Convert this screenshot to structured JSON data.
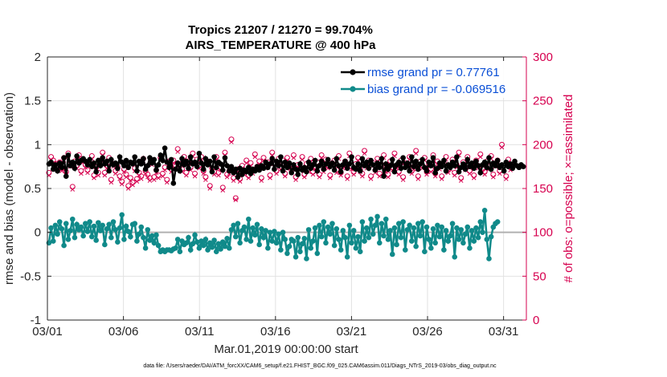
{
  "chart_data": {
    "type": "line",
    "title_line1": "Tropics 21207 / 21270 = 99.704%",
    "title_line2": "AIRS_TEMPERATURE @ 400 hPa",
    "xlabel": "Mar.01,2019 00:00:00 start",
    "ylabel": "rmse and bias (model - observation)",
    "ylabel_right": "# of obs: o=possible; ×=assimilated",
    "footer": "data file: /Users/raeder/DAI/ATM_forcXX/CAM6_setup/f.e21.FHIST_BGC.f09_025.CAM6assim.011/Diags_NTrS_2019-03/obs_diag_output.nc",
    "xlim": [
      0,
      31.5
    ],
    "ylim": [
      -1,
      2
    ],
    "ylim_right": [
      0,
      300
    ],
    "x_ticks": [
      0,
      5,
      10,
      15,
      20,
      25,
      30
    ],
    "x_tick_labels": [
      "03/01",
      "03/06",
      "03/11",
      "03/16",
      "03/21",
      "03/26",
      "03/31"
    ],
    "y_ticks": [
      -1,
      -0.5,
      0,
      0.5,
      1,
      1.5,
      2
    ],
    "y_tick_labels": [
      "-1",
      "-0.5",
      "0",
      "0.5",
      "1",
      "1.5",
      "2"
    ],
    "y_ticks_right": [
      0,
      50,
      100,
      150,
      200,
      250,
      300
    ],
    "y_tick_labels_right": [
      "0",
      "50",
      "100",
      "150",
      "200",
      "250",
      "300"
    ],
    "grid": true,
    "legend_position": "top-right",
    "colors": {
      "rmse": "#000000",
      "bias": "#108a8a",
      "obs": "#d6004f",
      "zero_line": "#b0b0b0",
      "axis_right": "#d6004f"
    },
    "series": [
      {
        "name": "rmse grand pr = 0.77761",
        "key": "rmse",
        "values": [
          0.78,
          0.8,
          0.72,
          0.77,
          0.7,
          0.79,
          0.74,
          0.85,
          0.64,
          0.88,
          0.76,
          0.8,
          0.73,
          0.87,
          0.79,
          0.82,
          0.84,
          0.81,
          0.77,
          0.83,
          0.75,
          0.79,
          0.69,
          0.82,
          0.76,
          0.85,
          0.78,
          0.81,
          0.7,
          0.83,
          0.77,
          0.79,
          0.73,
          0.86,
          0.8,
          0.76,
          0.82,
          0.74,
          0.8,
          0.78,
          0.86,
          0.7,
          0.81,
          0.78,
          0.84,
          0.72,
          0.76,
          0.85,
          0.79,
          0.83,
          0.71,
          0.77,
          0.88,
          0.82,
          0.96,
          0.8,
          0.74,
          0.83,
          0.56,
          0.72,
          0.79,
          0.7,
          0.84,
          0.77,
          0.81,
          0.73,
          0.86,
          0.78,
          0.8,
          0.75,
          0.9,
          0.79,
          0.72,
          0.84,
          0.77,
          0.81,
          0.69,
          0.86,
          0.74,
          0.8,
          0.78,
          0.71,
          0.85,
          0.76,
          0.7,
          0.75,
          0.68,
          0.72,
          0.63,
          0.73,
          0.66,
          0.71,
          0.69,
          0.74,
          0.67,
          0.72,
          0.7,
          0.75,
          0.71,
          0.76,
          0.73,
          0.8,
          0.74,
          0.78,
          0.84,
          0.72,
          0.81,
          0.76,
          0.86,
          0.7,
          0.8,
          0.74,
          0.79,
          0.68,
          0.77,
          0.72,
          0.66,
          0.78,
          0.71,
          0.74,
          0.69,
          0.8,
          0.73,
          0.77,
          0.82,
          0.7,
          0.76,
          0.81,
          0.72,
          0.78,
          0.83,
          0.75,
          0.79,
          0.71,
          0.84,
          0.76,
          0.69,
          0.77,
          0.81,
          0.73,
          0.78,
          0.86,
          0.74,
          0.72,
          0.78,
          0.7,
          0.84,
          0.76,
          0.8,
          0.73,
          0.82,
          0.77,
          0.71,
          0.79,
          0.74,
          0.84,
          0.64,
          0.78,
          0.72,
          0.76,
          0.83,
          0.69,
          0.77,
          0.8,
          0.73,
          0.85,
          0.74,
          0.79,
          0.7,
          0.86,
          0.75,
          0.81,
          0.72,
          0.78,
          0.83,
          0.74,
          0.7,
          0.8,
          0.76,
          0.85,
          0.68,
          0.73,
          0.79,
          0.75,
          0.82,
          0.7,
          0.77,
          0.74,
          0.8,
          0.76,
          0.86,
          0.69,
          0.74,
          0.78,
          0.72,
          0.83,
          0.75,
          0.79,
          0.73,
          0.81,
          0.76,
          0.68,
          0.77,
          0.8,
          0.74,
          0.85,
          0.72,
          0.79,
          0.76,
          0.82,
          0.74,
          0.77,
          0.7,
          0.8,
          0.75,
          0.78,
          0.73,
          0.81,
          0.76,
          0.74,
          0.77,
          0.75
        ]
      },
      {
        "name": "bias grand pr = -0.069516",
        "key": "bias",
        "values": [
          -0.12,
          0.05,
          -0.1,
          0.08,
          -0.02,
          0.12,
          0.04,
          -0.15,
          0.1,
          -0.08,
          0.02,
          0.15,
          -0.06,
          0.09,
          0.03,
          0.06,
          -0.04,
          0.1,
          0.01,
          0.12,
          -0.05,
          0.07,
          -0.09,
          0.11,
          0.02,
          0.08,
          -0.14,
          0.04,
          0.09,
          -0.06,
          0.12,
          0.03,
          -0.11,
          0.05,
          0.2,
          -0.08,
          0.07,
          0.01,
          -0.05,
          0.09,
          0.1,
          -0.1,
          -0.02,
          0.06,
          -0.06,
          -0.18,
          0.03,
          -0.09,
          -0.04,
          -0.12,
          -0.03,
          -0.15,
          -0.22,
          -0.2,
          -0.22,
          -0.2,
          -0.2,
          -0.21,
          -0.19,
          -0.18,
          -0.08,
          -0.22,
          -0.1,
          -0.14,
          -0.12,
          -0.06,
          -0.2,
          -0.13,
          -0.03,
          -0.11,
          -0.18,
          -0.1,
          -0.15,
          -0.08,
          -0.2,
          -0.12,
          -0.17,
          -0.09,
          -0.22,
          -0.13,
          -0.19,
          -0.11,
          -0.16,
          -0.07,
          -0.18,
          0.03,
          0.08,
          -0.05,
          0.1,
          -0.12,
          0.02,
          0.06,
          -0.08,
          0.15,
          -0.1,
          0.05,
          -0.03,
          0.09,
          -0.14,
          0.04,
          -0.06,
          0.02,
          -0.18,
          0.0,
          -0.1,
          0.01,
          -0.12,
          -0.02,
          -0.2,
          0.0,
          -0.08,
          -0.24,
          -0.16,
          -0.08,
          -0.1,
          -0.28,
          -0.06,
          -0.22,
          -0.13,
          -0.07,
          -0.3,
          0.03,
          -0.18,
          -0.1,
          0.05,
          -0.24,
          0.08,
          -0.05,
          0.12,
          -0.12,
          0.06,
          -0.02,
          0.1,
          -0.15,
          0.04,
          -0.08,
          -0.2,
          0.02,
          -0.06,
          -0.28,
          0.08,
          -0.12,
          0.02,
          -0.18,
          -0.05,
          -0.22,
          0.12,
          -0.1,
          0.05,
          -0.06,
          0.15,
          -0.02,
          0.08,
          0.18,
          -0.12,
          0.1,
          -0.04,
          0.15,
          -0.08,
          0.02,
          -0.25,
          0.05,
          -0.14,
          0.1,
          -0.06,
          0.12,
          -0.2,
          0.03,
          0.08,
          -0.1,
          0.05,
          -0.16,
          0.1,
          -0.04,
          0.12,
          -0.22,
          0.06,
          -0.08,
          -0.18,
          0.04,
          -0.12,
          0.08,
          -0.05,
          0.06,
          -0.2,
          0.02,
          -0.1,
          -0.04,
          0.1,
          -0.28,
          0.05,
          -0.08,
          0.03,
          -0.12,
          -0.02,
          0.06,
          -0.18,
          0.02,
          -0.1,
          0.05,
          -0.06,
          0.12,
          0.0,
          0.25,
          -0.08,
          -0.3,
          -0.05,
          0.06,
          0.1,
          0.12
        ]
      },
      {
        "name": "obs possible",
        "key": "obs",
        "values": [
          168,
          186,
          182,
          178,
          175,
          180,
          173,
          185,
          169,
          190,
          178,
          152,
          181,
          176,
          188,
          170,
          183,
          177,
          171,
          179,
          187,
          165,
          174,
          168,
          182,
          191,
          168,
          176,
          185,
          160,
          178,
          170,
          175,
          164,
          158,
          172,
          166,
          153,
          162,
          157,
          173,
          161,
          168,
          164,
          184,
          170,
          166,
          162,
          180,
          163,
          171,
          165,
          185,
          167,
          174,
          160,
          181,
          172,
          182,
          176,
          195,
          178,
          172,
          186,
          168,
          181,
          174,
          190,
          167,
          183,
          176,
          186,
          170,
          163,
          181,
          153,
          173,
          169,
          186,
          168,
          174,
          151,
          191,
          166,
          170,
          206,
          162,
          139,
          172,
          161,
          176,
          169,
          182,
          165,
          179,
          170,
          189,
          175,
          181,
          162,
          185,
          176,
          180,
          165,
          191,
          178,
          170,
          184,
          175,
          182,
          167,
          185,
          176,
          171,
          188,
          163,
          177,
          174,
          186,
          166,
          178,
          172,
          184,
          169,
          175,
          180,
          166,
          188,
          172,
          183,
          176,
          165,
          179,
          182,
          171,
          187,
          168,
          176,
          181,
          164,
          190,
          175,
          169,
          178,
          185,
          172,
          167,
          193,
          176,
          182,
          164,
          179,
          171,
          184,
          167,
          177,
          188,
          172,
          166,
          181,
          174,
          190,
          176,
          169,
          182,
          163,
          179,
          178,
          186,
          170,
          175,
          193,
          164,
          181,
          176,
          185,
          169,
          178,
          172,
          188,
          167,
          181,
          175,
          164,
          179,
          186,
          171,
          175,
          183,
          168,
          177,
          191,
          162,
          180,
          174,
          186,
          170,
          178,
          165,
          182,
          176,
          189,
          172,
          169,
          181,
          175,
          187,
          166,
          178,
          182,
          170,
          200,
          176,
          164,
          183,
          174
        ]
      }
    ],
    "assimilated": [
      165,
      183,
      179,
      175,
      172,
      177,
      170,
      182,
      166,
      187,
      175,
      149,
      178,
      173,
      185,
      167,
      180,
      174,
      168,
      176,
      184,
      162,
      171,
      165,
      179,
      188,
      165,
      173,
      182,
      157,
      175,
      167,
      172,
      161,
      155,
      169,
      163,
      150,
      159,
      154,
      170,
      158,
      165,
      161,
      181,
      167,
      163,
      159,
      177,
      160,
      168,
      162,
      182,
      164,
      171,
      157,
      178,
      169,
      179,
      173,
      192,
      175,
      169,
      183,
      165,
      178,
      171,
      187,
      164,
      180,
      173,
      183,
      167,
      160,
      178,
      150,
      170,
      166,
      183,
      165,
      171,
      148,
      188,
      163,
      167,
      203,
      159,
      137,
      169,
      158,
      173,
      166,
      179,
      162,
      176,
      167,
      186,
      172,
      178,
      159,
      182,
      173,
      177,
      162,
      188,
      175,
      167,
      181,
      172,
      179,
      164,
      182,
      173,
      168,
      185,
      160,
      174,
      171,
      183,
      163,
      175,
      169,
      181,
      166,
      172,
      177,
      163,
      185,
      169,
      180,
      173,
      162,
      176,
      179,
      168,
      184,
      165,
      173,
      178,
      161,
      187,
      172,
      166,
      175,
      182,
      169,
      164,
      190,
      173,
      179,
      161,
      176,
      168,
      181,
      164,
      174,
      185,
      169,
      163,
      178,
      171,
      187,
      173,
      166,
      179,
      160,
      176,
      175,
      183,
      167,
      172,
      190,
      161,
      178,
      173,
      182,
      166,
      175,
      169,
      185,
      164,
      178,
      172,
      161,
      176,
      183,
      168,
      172,
      180,
      165,
      174,
      188,
      159,
      177,
      171,
      183,
      167,
      175,
      162,
      179,
      173,
      186,
      169,
      166,
      178,
      172,
      184,
      163,
      175,
      179,
      167,
      197,
      173,
      161,
      180,
      171
    ]
  }
}
